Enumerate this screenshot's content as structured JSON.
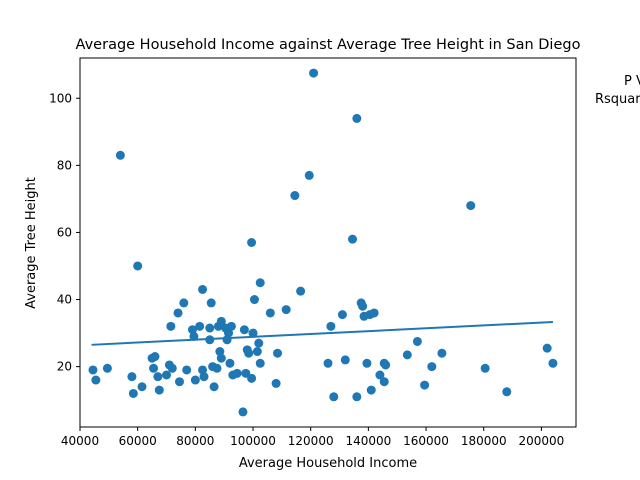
{
  "chart_data": {
    "type": "scatter",
    "title": "Average Household Income against Average Tree Height in San Diego",
    "xlabel": "Average Household Income",
    "ylabel": "Average Tree Height",
    "xlim": [
      40000,
      212000
    ],
    "ylim": [
      2,
      112
    ],
    "xticks": [
      40000,
      60000,
      80000,
      100000,
      120000,
      140000,
      160000,
      180000,
      200000
    ],
    "yticks": [
      20,
      40,
      60,
      80,
      100
    ],
    "grid": false,
    "annotations": [
      "P V",
      "Rsquar"
    ],
    "colors": {
      "points": "#1f77b4",
      "trendline": "#1f77b4"
    },
    "trendline": {
      "x": [
        44000,
        204000
      ],
      "y": [
        26.5,
        33.3
      ]
    },
    "points": [
      {
        "x": 44500,
        "y": 19
      },
      {
        "x": 45500,
        "y": 16
      },
      {
        "x": 49500,
        "y": 19.5
      },
      {
        "x": 54000,
        "y": 83
      },
      {
        "x": 58000,
        "y": 17
      },
      {
        "x": 58500,
        "y": 12
      },
      {
        "x": 60000,
        "y": 50
      },
      {
        "x": 61500,
        "y": 14
      },
      {
        "x": 65000,
        "y": 22.5
      },
      {
        "x": 65500,
        "y": 19.5
      },
      {
        "x": 66000,
        "y": 23
      },
      {
        "x": 67000,
        "y": 17
      },
      {
        "x": 67500,
        "y": 13
      },
      {
        "x": 70000,
        "y": 17.5
      },
      {
        "x": 71000,
        "y": 20.5
      },
      {
        "x": 71500,
        "y": 32
      },
      {
        "x": 72000,
        "y": 19.5
      },
      {
        "x": 74000,
        "y": 36
      },
      {
        "x": 74500,
        "y": 15.5
      },
      {
        "x": 76000,
        "y": 39
      },
      {
        "x": 77000,
        "y": 19
      },
      {
        "x": 79000,
        "y": 31
      },
      {
        "x": 79500,
        "y": 29
      },
      {
        "x": 80000,
        "y": 16
      },
      {
        "x": 81500,
        "y": 32
      },
      {
        "x": 82500,
        "y": 43
      },
      {
        "x": 82500,
        "y": 19
      },
      {
        "x": 83000,
        "y": 17
      },
      {
        "x": 85000,
        "y": 31.5
      },
      {
        "x": 85000,
        "y": 28
      },
      {
        "x": 85500,
        "y": 39
      },
      {
        "x": 86000,
        "y": 20
      },
      {
        "x": 86500,
        "y": 14
      },
      {
        "x": 87500,
        "y": 19.5
      },
      {
        "x": 88000,
        "y": 32
      },
      {
        "x": 88500,
        "y": 24.5
      },
      {
        "x": 89000,
        "y": 22.5
      },
      {
        "x": 89000,
        "y": 33.5
      },
      {
        "x": 90500,
        "y": 31.5
      },
      {
        "x": 91000,
        "y": 28
      },
      {
        "x": 91500,
        "y": 30
      },
      {
        "x": 92000,
        "y": 21
      },
      {
        "x": 92500,
        "y": 32
      },
      {
        "x": 93000,
        "y": 17.5
      },
      {
        "x": 94500,
        "y": 18
      },
      {
        "x": 96500,
        "y": 6.5
      },
      {
        "x": 97000,
        "y": 31
      },
      {
        "x": 97500,
        "y": 18
      },
      {
        "x": 98000,
        "y": 25
      },
      {
        "x": 98500,
        "y": 24
      },
      {
        "x": 99500,
        "y": 57
      },
      {
        "x": 100000,
        "y": 30
      },
      {
        "x": 99500,
        "y": 16.5
      },
      {
        "x": 100500,
        "y": 40
      },
      {
        "x": 101500,
        "y": 24.5
      },
      {
        "x": 102000,
        "y": 27
      },
      {
        "x": 102500,
        "y": 45
      },
      {
        "x": 102500,
        "y": 21
      },
      {
        "x": 106000,
        "y": 36
      },
      {
        "x": 108000,
        "y": 15
      },
      {
        "x": 108500,
        "y": 24
      },
      {
        "x": 111500,
        "y": 37
      },
      {
        "x": 114500,
        "y": 71
      },
      {
        "x": 116500,
        "y": 42.5
      },
      {
        "x": 119500,
        "y": 77
      },
      {
        "x": 121000,
        "y": 107.5
      },
      {
        "x": 126000,
        "y": 21
      },
      {
        "x": 127000,
        "y": 32
      },
      {
        "x": 128000,
        "y": 11
      },
      {
        "x": 131000,
        "y": 35.5
      },
      {
        "x": 132000,
        "y": 22
      },
      {
        "x": 134500,
        "y": 58
      },
      {
        "x": 136000,
        "y": 94
      },
      {
        "x": 136000,
        "y": 11
      },
      {
        "x": 137500,
        "y": 39
      },
      {
        "x": 138000,
        "y": 38
      },
      {
        "x": 138500,
        "y": 35
      },
      {
        "x": 139500,
        "y": 21
      },
      {
        "x": 140500,
        "y": 35.5
      },
      {
        "x": 141000,
        "y": 13
      },
      {
        "x": 142000,
        "y": 36
      },
      {
        "x": 144000,
        "y": 17.5
      },
      {
        "x": 145500,
        "y": 21
      },
      {
        "x": 145500,
        "y": 15.5
      },
      {
        "x": 146000,
        "y": 20.5
      },
      {
        "x": 153500,
        "y": 23.5
      },
      {
        "x": 157000,
        "y": 27.5
      },
      {
        "x": 159500,
        "y": 14.5
      },
      {
        "x": 162000,
        "y": 20
      },
      {
        "x": 165500,
        "y": 24
      },
      {
        "x": 175500,
        "y": 68
      },
      {
        "x": 180500,
        "y": 19.5
      },
      {
        "x": 188000,
        "y": 12.5
      },
      {
        "x": 202000,
        "y": 25.5
      },
      {
        "x": 204000,
        "y": 21
      }
    ]
  }
}
